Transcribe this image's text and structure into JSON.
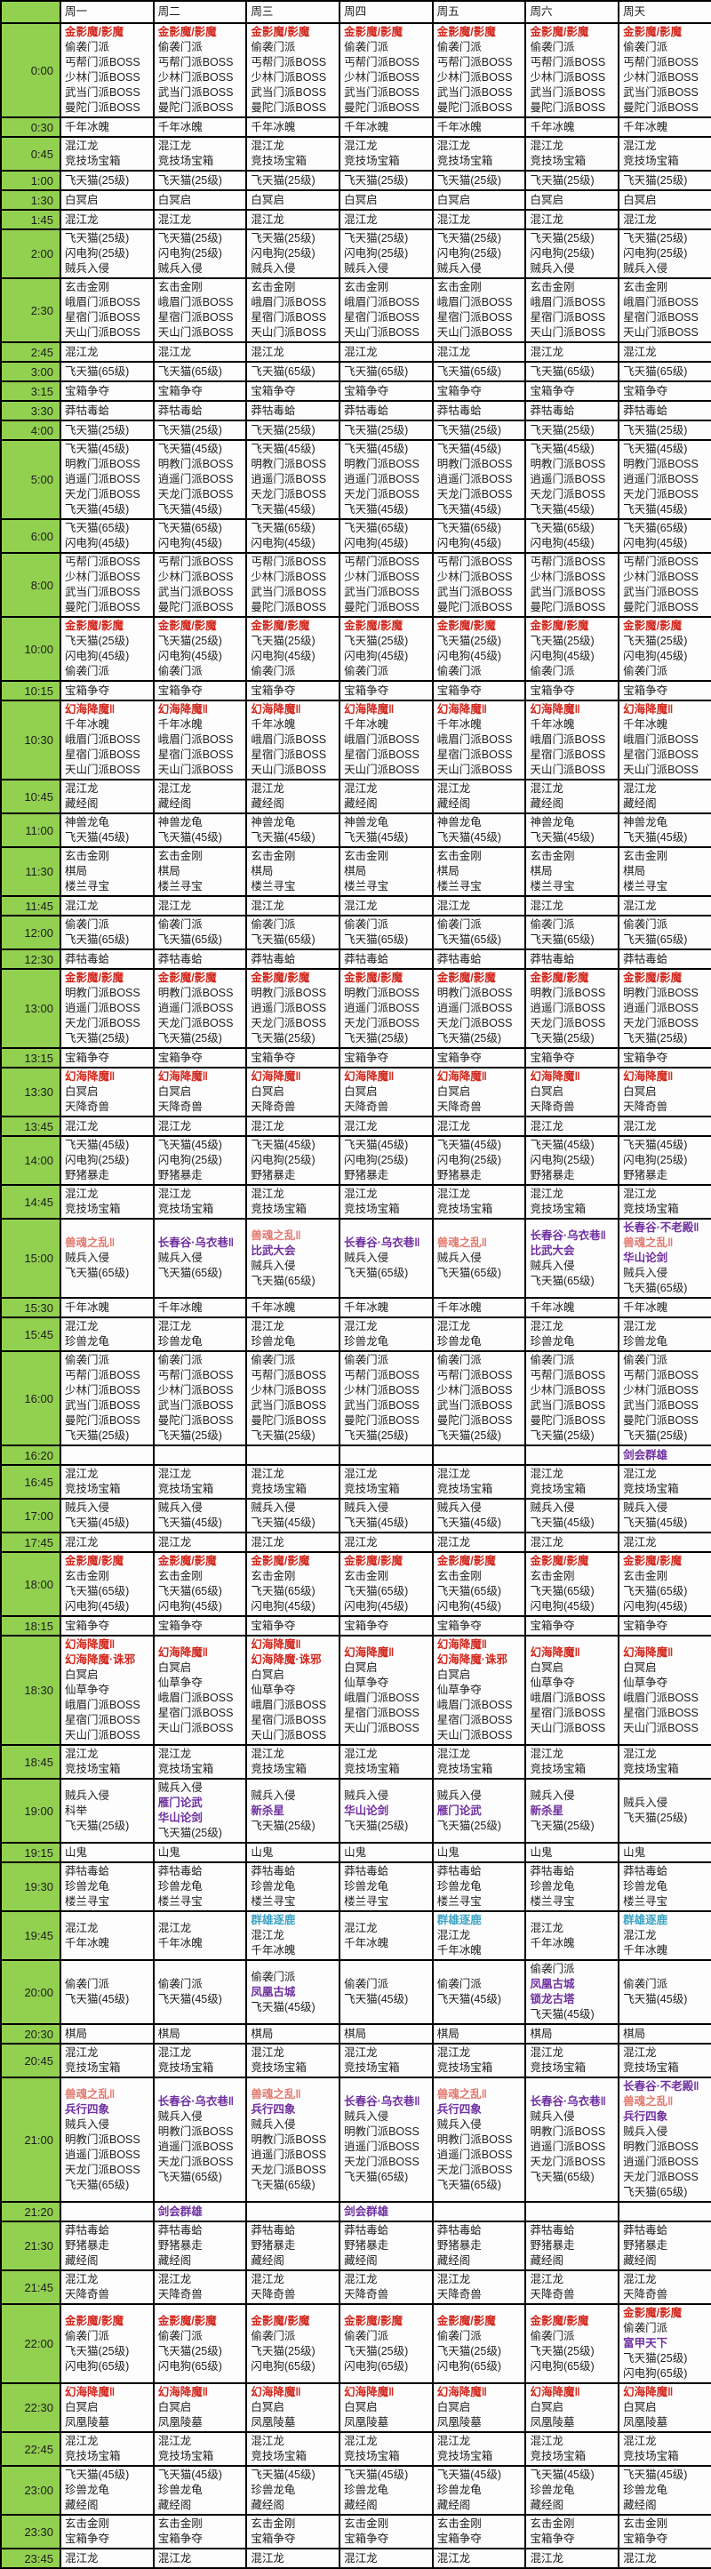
{
  "header": {
    "corner": "",
    "days": [
      "周一",
      "周二",
      "周三",
      "周四",
      "周五",
      "周六",
      "周天"
    ]
  },
  "colors": {
    "red": "#d2281e",
    "pink": "#e4796f",
    "purple": "#7030a0",
    "teal": "#3da4c6",
    "black": "#1d1d1d",
    "time_bg": "#92d050"
  },
  "rows": [
    {
      "time": "0:00",
      "all": [
        [
          "金影魔/影魔",
          "red"
        ],
        "偷袭门派",
        "丐帮门派BOSS",
        "少林门派BOSS",
        "武当门派BOSS",
        "曼陀门派BOSS"
      ]
    },
    {
      "time": "0:30",
      "all": [
        "千年冰魄"
      ]
    },
    {
      "time": "0:45",
      "all": [
        "混江龙",
        "竞技场宝箱"
      ]
    },
    {
      "time": "1:00",
      "all": [
        "飞天猫(25级)"
      ]
    },
    {
      "time": "1:30",
      "all": [
        "白冥启"
      ]
    },
    {
      "time": "1:45",
      "all": [
        "混江龙"
      ]
    },
    {
      "time": "2:00",
      "all": [
        "飞天猫(25级)",
        "闪电狗(25级)",
        "贼兵入侵"
      ]
    },
    {
      "time": "2:30",
      "all": [
        "玄击金刚",
        "峨眉门派BOSS",
        "星宿门派BOSS",
        "天山门派BOSS"
      ]
    },
    {
      "time": "2:45",
      "all": [
        "混江龙"
      ]
    },
    {
      "time": "3:00",
      "all": [
        "飞天猫(65级)"
      ]
    },
    {
      "time": "3:15",
      "all": [
        "宝箱争夺"
      ]
    },
    {
      "time": "3:30",
      "all": [
        "莽牯毒蛤"
      ]
    },
    {
      "time": "4:00",
      "all": [
        "飞天猫(25级)"
      ]
    },
    {
      "time": "5:00",
      "all": [
        "飞天猫(45级)",
        "明教门派BOSS",
        "逍遥门派BOSS",
        "天龙门派BOSS",
        "飞天猫(45级)"
      ]
    },
    {
      "time": "6:00",
      "all": [
        "飞天猫(65级)",
        "闪电狗(45级)"
      ]
    },
    {
      "time": "8:00",
      "all": [
        "丐帮门派BOSS",
        "少林门派BOSS",
        "武当门派BOSS",
        "曼陀门派BOSS"
      ]
    },
    {
      "time": "10:00",
      "all": [
        [
          "金影魔/影魔",
          "red"
        ],
        "飞天猫(25级)",
        "闪电狗(45级)",
        "偷袭门派"
      ]
    },
    {
      "time": "10:15",
      "all": [
        "宝箱争夺"
      ]
    },
    {
      "time": "10:30",
      "all": [
        [
          "幻海降魔‖",
          "red"
        ],
        "千年冰魄",
        "峨眉门派BOSS",
        "星宿门派BOSS",
        "天山门派BOSS"
      ]
    },
    {
      "time": "10:45",
      "all": [
        "混江龙",
        "藏经阁"
      ]
    },
    {
      "time": "11:00",
      "all": [
        "神兽龙龟",
        "飞天猫(45级)"
      ]
    },
    {
      "time": "11:30",
      "all": [
        "玄击金刚",
        "棋局",
        "楼兰寻宝"
      ]
    },
    {
      "time": "11:45",
      "all": [
        "混江龙"
      ]
    },
    {
      "time": "12:00",
      "all": [
        "偷袭门派",
        "飞天猫(65级)"
      ]
    },
    {
      "time": "12:30",
      "all": [
        "莽牯毒蛤"
      ]
    },
    {
      "time": "13:00",
      "all": [
        [
          "金影魔/影魔",
          "red"
        ],
        "明教门派BOSS",
        "逍遥门派BOSS",
        "天龙门派BOSS",
        "飞天猫(25级)"
      ]
    },
    {
      "time": "13:15",
      "all": [
        "宝箱争夺"
      ]
    },
    {
      "time": "13:30",
      "all": [
        [
          "幻海降魔‖",
          "red"
        ],
        "白冥启",
        "天降奇兽"
      ]
    },
    {
      "time": "13:45",
      "all": [
        "混江龙"
      ]
    },
    {
      "time": "14:00",
      "all": [
        "飞天猫(45级)",
        "闪电狗(25级)",
        "野猪暴走"
      ]
    },
    {
      "time": "14:45",
      "all": [
        "混江龙",
        "竞技场宝箱"
      ]
    },
    {
      "time": "15:00",
      "cells": [
        [
          [
            "兽魂之乱‖",
            "pink"
          ],
          "贼兵入侵",
          "飞天猫(65级)"
        ],
        [
          [
            "长春谷·乌衣巷‖",
            "purple"
          ],
          "贼兵入侵",
          "飞天猫(65级)"
        ],
        [
          [
            "兽魂之乱‖",
            "pink"
          ],
          [
            "比武大会",
            "purple"
          ],
          "贼兵入侵",
          "飞天猫(65级)"
        ],
        [
          [
            "长春谷·乌衣巷‖",
            "purple"
          ],
          "贼兵入侵",
          "飞天猫(65级)"
        ],
        [
          [
            "兽魂之乱‖",
            "pink"
          ],
          "贼兵入侵",
          "飞天猫(65级)"
        ],
        [
          [
            "长春谷·乌衣巷‖",
            "purple"
          ],
          [
            "比武大会",
            "purple"
          ],
          "贼兵入侵",
          "飞天猫(65级)"
        ],
        [
          [
            "长春谷·不老殿‖",
            "purple"
          ],
          [
            "兽魂之乱‖",
            "pink"
          ],
          [
            "华山论剑",
            "purple"
          ],
          "贼兵入侵",
          "飞天猫(65级)"
        ]
      ]
    },
    {
      "time": "15:30",
      "all": [
        "千年冰魄"
      ]
    },
    {
      "time": "15:45",
      "all": [
        "混江龙",
        "珍兽龙龟"
      ]
    },
    {
      "time": "16:00",
      "all": [
        "偷袭门派",
        "丐帮门派BOSS",
        "少林门派BOSS",
        "武当门派BOSS",
        "曼陀门派BOSS",
        "飞天猫(25级)"
      ]
    },
    {
      "time": "16:20",
      "cells": [
        [],
        [],
        [],
        [],
        [],
        [],
        [
          [
            "剑会群雄",
            "purple"
          ]
        ]
      ]
    },
    {
      "time": "16:45",
      "all": [
        "混江龙",
        "竞技场宝箱"
      ]
    },
    {
      "time": "17:00",
      "all": [
        "贼兵入侵",
        "飞天猫(45级)"
      ]
    },
    {
      "time": "17:45",
      "all": [
        "混江龙"
      ]
    },
    {
      "time": "18:00",
      "all": [
        [
          "金影魔/影魔",
          "red"
        ],
        "玄击金刚",
        "飞天猫(65级)",
        "闪电狗(45级)"
      ]
    },
    {
      "time": "18:15",
      "all": [
        "宝箱争夺"
      ]
    },
    {
      "time": "18:30",
      "cells": [
        [
          [
            "幻海降魔‖",
            "red"
          ],
          [
            "幻海降魔·诛邪",
            "red"
          ],
          "白冥启",
          "仙草争夺",
          "峨眉门派BOSS",
          "星宿门派BOSS",
          "天山门派BOSS"
        ],
        [
          [
            "幻海降魔‖",
            "red"
          ],
          "白冥启",
          "仙草争夺",
          "峨眉门派BOSS",
          "星宿门派BOSS",
          "天山门派BOSS"
        ],
        [
          [
            "幻海降魔‖",
            "red"
          ],
          [
            "幻海降魔·诛邪",
            "red"
          ],
          "白冥启",
          "仙草争夺",
          "峨眉门派BOSS",
          "星宿门派BOSS",
          "天山门派BOSS"
        ],
        [
          [
            "幻海降魔‖",
            "red"
          ],
          "白冥启",
          "仙草争夺",
          "峨眉门派BOSS",
          "星宿门派BOSS",
          "天山门派BOSS"
        ],
        [
          [
            "幻海降魔‖",
            "red"
          ],
          [
            "幻海降魔·诛邪",
            "red"
          ],
          "白冥启",
          "仙草争夺",
          "峨眉门派BOSS",
          "星宿门派BOSS",
          "天山门派BOSS"
        ],
        [
          [
            "幻海降魔‖",
            "red"
          ],
          "白冥启",
          "仙草争夺",
          "峨眉门派BOSS",
          "星宿门派BOSS",
          "天山门派BOSS"
        ],
        [
          [
            "幻海降魔‖",
            "red"
          ],
          "白冥启",
          "仙草争夺",
          "峨眉门派BOSS",
          "星宿门派BOSS",
          "天山门派BOSS"
        ]
      ]
    },
    {
      "time": "18:45",
      "all": [
        "混江龙",
        "竞技场宝箱"
      ]
    },
    {
      "time": "19:00",
      "cells": [
        [
          "贼兵入侵",
          "科举",
          "飞天猫(25级)"
        ],
        [
          "贼兵入侵",
          [
            "雁门论武",
            "purple"
          ],
          [
            "华山论剑",
            "purple"
          ],
          "飞天猫(25级)"
        ],
        [
          "贼兵入侵",
          [
            "新杀星",
            "purple"
          ],
          "飞天猫(25级)"
        ],
        [
          "贼兵入侵",
          [
            "华山论剑",
            "purple"
          ],
          "飞天猫(25级)"
        ],
        [
          "贼兵入侵",
          [
            "雁门论武",
            "purple"
          ],
          "飞天猫(25级)"
        ],
        [
          "贼兵入侵",
          [
            "新杀星",
            "purple"
          ],
          "飞天猫(25级)"
        ],
        [
          "贼兵入侵",
          "飞天猫(25级)"
        ]
      ]
    },
    {
      "time": "19:15",
      "all": [
        "山鬼"
      ]
    },
    {
      "time": "19:30",
      "all": [
        "莽牯毒蛤",
        "珍兽龙龟",
        "楼兰寻宝"
      ]
    },
    {
      "time": "19:45",
      "cells": [
        [
          "混江龙",
          "千年冰魄"
        ],
        [
          "混江龙",
          "千年冰魄"
        ],
        [
          [
            "群雄逐鹿",
            "teal"
          ],
          "混江龙",
          "千年冰魄"
        ],
        [
          "混江龙",
          "千年冰魄"
        ],
        [
          [
            "群雄逐鹿",
            "teal"
          ],
          "混江龙",
          "千年冰魄"
        ],
        [
          "混江龙",
          "千年冰魄"
        ],
        [
          [
            "群雄逐鹿",
            "teal"
          ],
          "混江龙",
          "千年冰魄"
        ]
      ]
    },
    {
      "time": "20:00",
      "cells": [
        [
          "偷袭门派",
          "飞天猫(45级)"
        ],
        [
          "偷袭门派",
          "飞天猫(45级)"
        ],
        [
          "偷袭门派",
          [
            "凤凰古城",
            "purple"
          ],
          "飞天猫(45级)"
        ],
        [
          "偷袭门派",
          "飞天猫(45级)"
        ],
        [
          "偷袭门派",
          "飞天猫(45级)"
        ],
        [
          "偷袭门派",
          [
            "凤凰古城",
            "purple"
          ],
          [
            "锁龙古塔",
            "purple"
          ],
          "飞天猫(45级)"
        ],
        [
          "偷袭门派",
          "飞天猫(45级)"
        ]
      ]
    },
    {
      "time": "20:30",
      "all": [
        "棋局"
      ]
    },
    {
      "time": "20:45",
      "all": [
        "混江龙",
        "竞技场宝箱"
      ]
    },
    {
      "time": "21:00",
      "cells": [
        [
          [
            "兽魂之乱‖",
            "pink"
          ],
          [
            "兵行四象",
            "purple"
          ],
          "贼兵入侵",
          "明教门派BOSS",
          "逍遥门派BOSS",
          "天龙门派BOSS",
          "飞天猫(65级)"
        ],
        [
          [
            "长春谷·乌衣巷‖",
            "purple"
          ],
          "贼兵入侵",
          "明教门派BOSS",
          "逍遥门派BOSS",
          "天龙门派BOSS",
          "飞天猫(65级)"
        ],
        [
          [
            "兽魂之乱‖",
            "pink"
          ],
          [
            "兵行四象",
            "purple"
          ],
          "贼兵入侵",
          "明教门派BOSS",
          "逍遥门派BOSS",
          "天龙门派BOSS",
          "飞天猫(65级)"
        ],
        [
          [
            "长春谷·乌衣巷‖",
            "purple"
          ],
          "贼兵入侵",
          "明教门派BOSS",
          "逍遥门派BOSS",
          "天龙门派BOSS",
          "飞天猫(65级)"
        ],
        [
          [
            "兽魂之乱‖",
            "pink"
          ],
          [
            "兵行四象",
            "purple"
          ],
          "贼兵入侵",
          "明教门派BOSS",
          "逍遥门派BOSS",
          "天龙门派BOSS",
          "飞天猫(65级)"
        ],
        [
          [
            "长春谷·乌衣巷‖",
            "purple"
          ],
          "贼兵入侵",
          "明教门派BOSS",
          "逍遥门派BOSS",
          "天龙门派BOSS",
          "飞天猫(65级)"
        ],
        [
          [
            "长春谷·不老殿‖",
            "purple"
          ],
          [
            "兽魂之乱‖",
            "pink"
          ],
          [
            "兵行四象",
            "purple"
          ],
          "贼兵入侵",
          "明教门派BOSS",
          "逍遥门派BOSS",
          "天龙门派BOSS",
          "飞天猫(65级)"
        ]
      ]
    },
    {
      "time": "21:20",
      "cells": [
        [],
        [
          [
            "剑会群雄",
            "purple"
          ]
        ],
        [],
        [
          [
            "剑会群雄",
            "purple"
          ]
        ],
        [],
        [],
        []
      ]
    },
    {
      "time": "21:30",
      "all": [
        "莽牯毒蛤",
        "野猪暴走",
        "藏经阁"
      ]
    },
    {
      "time": "21:45",
      "all": [
        "混江龙",
        "天降奇兽"
      ]
    },
    {
      "time": "22:00",
      "cells": [
        [
          [
            "金影魔/影魔",
            "red"
          ],
          "偷袭门派",
          "飞天猫(25级)",
          "闪电狗(65级)"
        ],
        [
          [
            "金影魔/影魔",
            "red"
          ],
          "偷袭门派",
          "飞天猫(25级)",
          "闪电狗(65级)"
        ],
        [
          [
            "金影魔/影魔",
            "red"
          ],
          "偷袭门派",
          "飞天猫(25级)",
          "闪电狗(65级)"
        ],
        [
          [
            "金影魔/影魔",
            "red"
          ],
          "偷袭门派",
          "飞天猫(25级)",
          "闪电狗(65级)"
        ],
        [
          [
            "金影魔/影魔",
            "red"
          ],
          "偷袭门派",
          "飞天猫(25级)",
          "闪电狗(65级)"
        ],
        [
          [
            "金影魔/影魔",
            "red"
          ],
          "偷袭门派",
          "飞天猫(25级)",
          "闪电狗(65级)"
        ],
        [
          [
            "金影魔/影魔",
            "red"
          ],
          "偷袭门派",
          [
            "富甲天下",
            "purple"
          ],
          "飞天猫(25级)",
          "闪电狗(65级)"
        ]
      ]
    },
    {
      "time": "22:30",
      "all": [
        [
          "幻海降魔‖",
          "red"
        ],
        "白冥启",
        "凤凰陵墓"
      ]
    },
    {
      "time": "22:45",
      "all": [
        "混江龙",
        "竞技场宝箱"
      ]
    },
    {
      "time": "23:00",
      "all": [
        "飞天猫(45级)",
        "珍兽龙龟",
        "藏经阁"
      ]
    },
    {
      "time": "23:30",
      "all": [
        "玄击金刚",
        "宝箱争夺"
      ]
    },
    {
      "time": "23:45",
      "all": [
        "混江龙"
      ]
    }
  ]
}
